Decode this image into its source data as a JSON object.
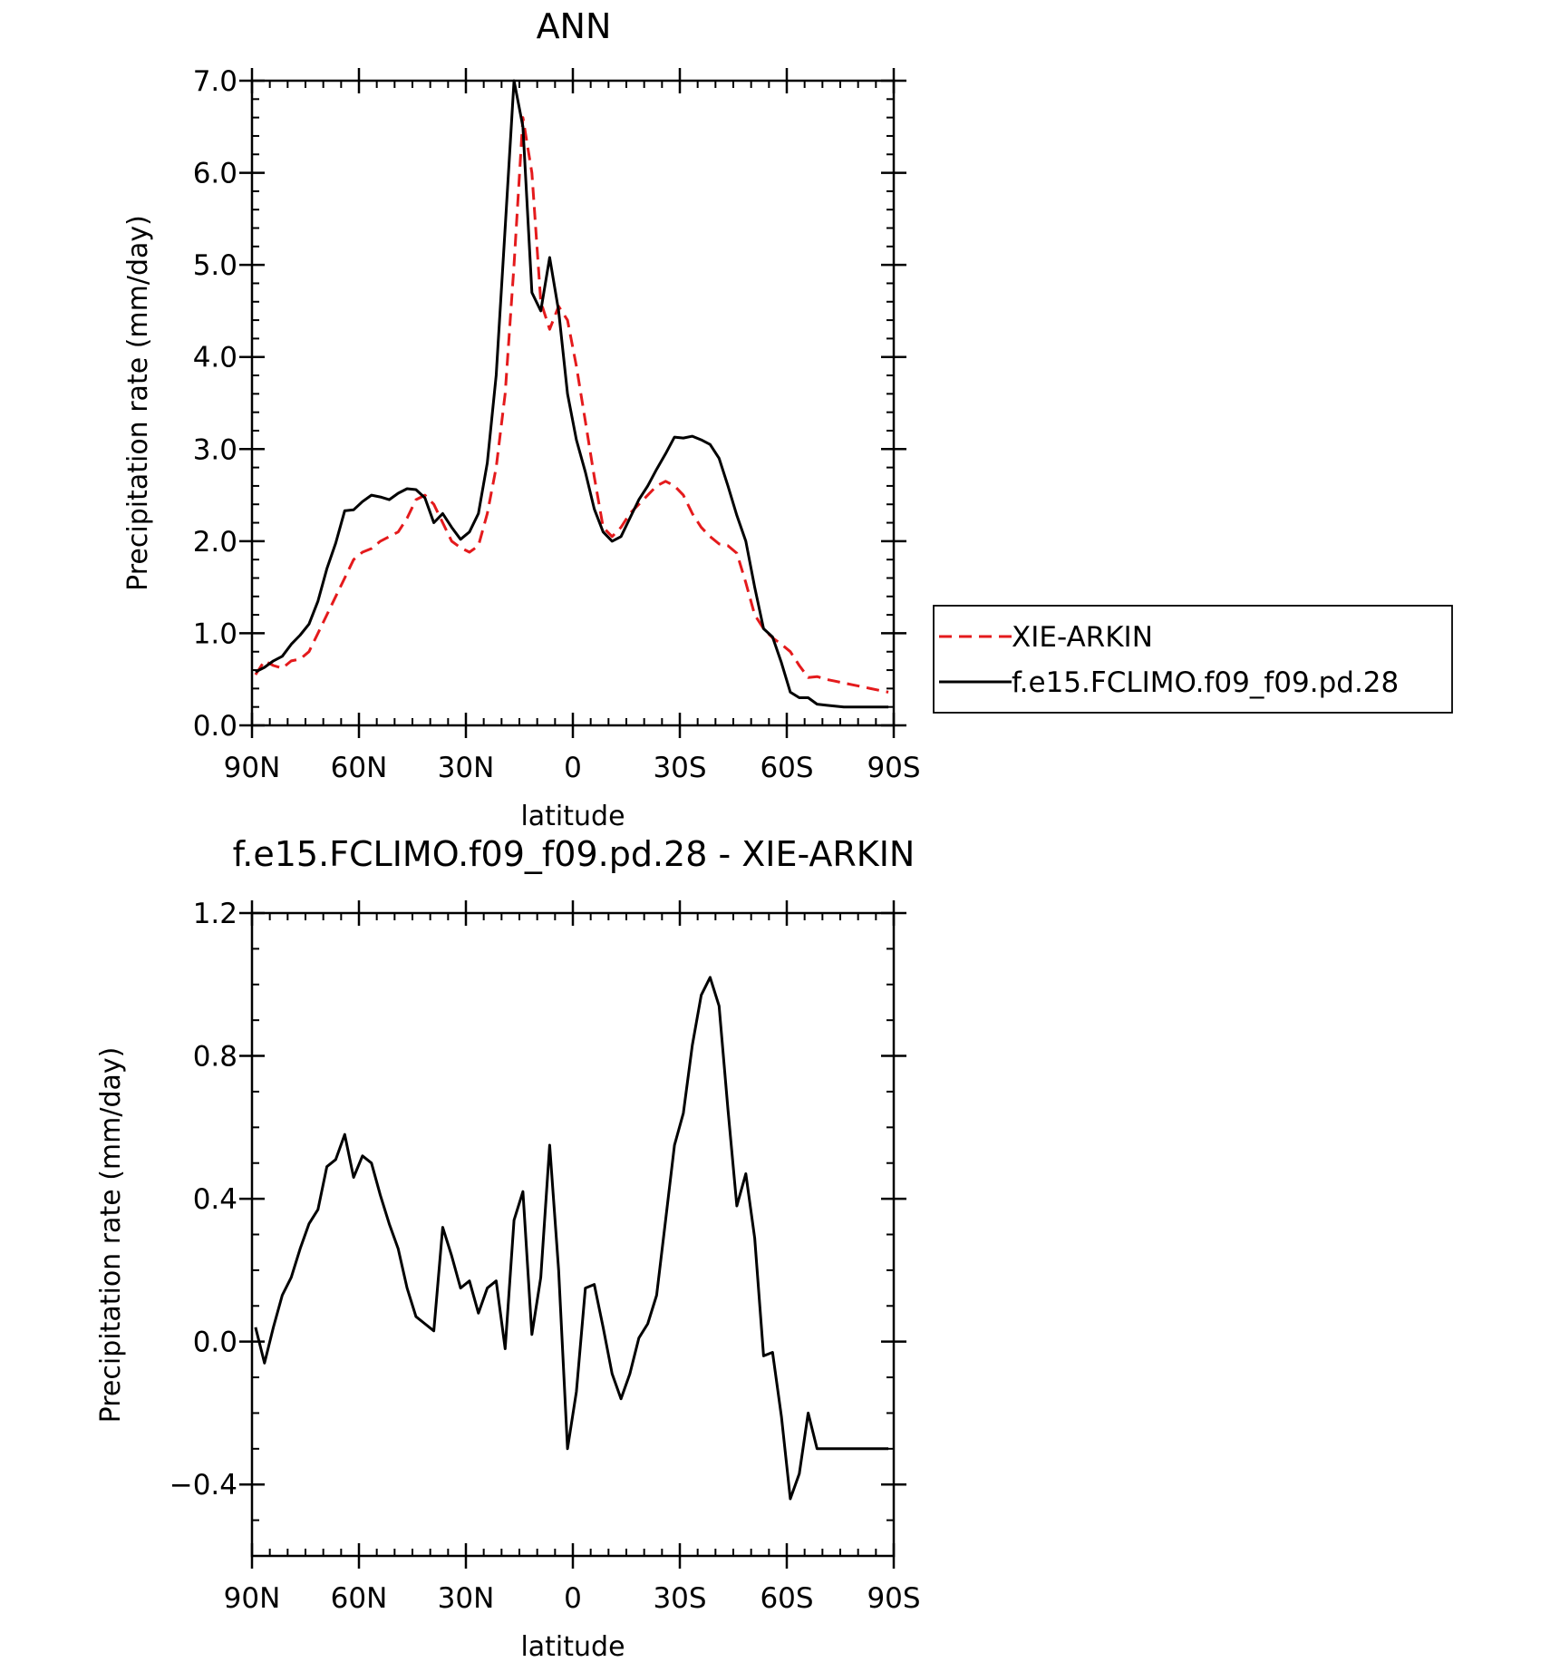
{
  "chart_data": [
    {
      "type": "line",
      "title": "ANN",
      "xlabel": "latitude",
      "ylabel": "Precipitation rate (mm/day)",
      "xlim": [
        90,
        -90
      ],
      "ylim": [
        0,
        7
      ],
      "x_ticks": [
        {
          "value": 90,
          "label": "90N"
        },
        {
          "value": 60,
          "label": "60N"
        },
        {
          "value": 30,
          "label": "30N"
        },
        {
          "value": 0,
          "label": "0"
        },
        {
          "value": -30,
          "label": "30S"
        },
        {
          "value": -60,
          "label": "60S"
        },
        {
          "value": -90,
          "label": "90S"
        }
      ],
      "y_ticks": [
        {
          "value": 0,
          "label": "0.0"
        },
        {
          "value": 1,
          "label": "1.0"
        },
        {
          "value": 2,
          "label": "2.0"
        },
        {
          "value": 3,
          "label": "3.0"
        },
        {
          "value": 4,
          "label": "4.0"
        },
        {
          "value": 5,
          "label": "5.0"
        },
        {
          "value": 6,
          "label": "6.0"
        },
        {
          "value": 7,
          "label": "7.0"
        }
      ],
      "legend": "right",
      "grid": false,
      "series": [
        {
          "name": "XIE-ARKIN",
          "color": "#e41a1c",
          "dash": "dashed",
          "x": [
            89,
            86.5,
            84,
            81.5,
            79,
            76.5,
            74,
            71.5,
            69,
            66.5,
            64,
            61.5,
            59,
            56.5,
            54,
            51.5,
            49,
            46.5,
            44,
            41.5,
            39,
            36.5,
            34,
            31.5,
            29,
            26.5,
            24,
            21.5,
            19,
            16.5,
            14,
            11.5,
            9,
            6.5,
            4,
            1.5,
            -1,
            -3.5,
            -6,
            -8.5,
            -11,
            -13.5,
            -16,
            -18.5,
            -21,
            -23.5,
            -26,
            -28.5,
            -31,
            -33.5,
            -36,
            -38.5,
            -41,
            -43.5,
            -46,
            -48.5,
            -51,
            -53.5,
            -56,
            -58.5,
            -61,
            -63.5,
            -66,
            -68.5,
            -71,
            -73.5,
            -76,
            -78.5,
            -81,
            -83.5,
            -86,
            -88.5
          ],
          "y": [
            0.55,
            0.7,
            0.65,
            0.62,
            0.7,
            0.72,
            0.8,
            1.0,
            1.2,
            1.4,
            1.6,
            1.8,
            1.88,
            1.92,
            2.0,
            2.05,
            2.1,
            2.25,
            2.45,
            2.5,
            2.4,
            2.2,
            2.0,
            1.93,
            1.88,
            1.95,
            2.3,
            2.8,
            3.6,
            5.0,
            6.6,
            6.0,
            4.6,
            4.3,
            4.55,
            4.4,
            3.9,
            3.3,
            2.7,
            2.15,
            2.05,
            2.15,
            2.3,
            2.4,
            2.5,
            2.6,
            2.65,
            2.6,
            2.5,
            2.3,
            2.15,
            2.05,
            1.97,
            1.95,
            1.87,
            1.55,
            1.2,
            1.05,
            0.95,
            0.88,
            0.8,
            0.65,
            0.52,
            0.53,
            0.5,
            0.48,
            0.46,
            0.44,
            0.42,
            0.4,
            0.38,
            0.36
          ]
        },
        {
          "name": "f.e15.FCLIMO.f09_f09.pd.28",
          "color": "#000000",
          "dash": "solid",
          "x": [
            89,
            86.5,
            84,
            81.5,
            79,
            76.5,
            74,
            71.5,
            69,
            66.5,
            64,
            61.5,
            59,
            56.5,
            54,
            51.5,
            49,
            46.5,
            44,
            41.5,
            39,
            36.5,
            34,
            31.5,
            29,
            26.5,
            24,
            21.5,
            19,
            16.5,
            14,
            11.5,
            9,
            6.5,
            4,
            1.5,
            -1,
            -3.5,
            -6,
            -8.5,
            -11,
            -13.5,
            -16,
            -18.5,
            -21,
            -23.5,
            -26,
            -28.5,
            -31,
            -33.5,
            -36,
            -38.5,
            -41,
            -43.5,
            -46,
            -48.5,
            -51,
            -53.5,
            -56,
            -58.5,
            -61,
            -63.5,
            -66,
            -68.5,
            -71,
            -73.5,
            -76,
            -78.5,
            -81,
            -83.5,
            -86,
            -88.5
          ],
          "y": [
            0.58,
            0.63,
            0.7,
            0.75,
            0.88,
            0.98,
            1.1,
            1.35,
            1.7,
            1.98,
            2.33,
            2.34,
            2.43,
            2.5,
            2.48,
            2.45,
            2.52,
            2.57,
            2.56,
            2.47,
            2.2,
            2.3,
            2.15,
            2.02,
            2.1,
            2.3,
            2.85,
            3.8,
            5.4,
            7.0,
            6.5,
            4.7,
            4.5,
            5.08,
            4.5,
            3.6,
            3.1,
            2.75,
            2.35,
            2.1,
            2.0,
            2.05,
            2.25,
            2.45,
            2.6,
            2.78,
            2.95,
            3.13,
            3.12,
            3.14,
            3.1,
            3.05,
            2.9,
            2.6,
            2.28,
            2.0,
            1.5,
            1.05,
            0.96,
            0.68,
            0.36,
            0.3,
            0.3,
            0.23,
            0.22,
            0.21,
            0.2,
            0.2,
            0.2,
            0.2,
            0.2,
            0.2
          ]
        }
      ]
    },
    {
      "type": "line",
      "title": "f.e15.FCLIMO.f09_f09.pd.28 - XIE-ARKIN",
      "xlabel": "latitude",
      "ylabel": "Precipitation rate (mm/day)",
      "xlim": [
        90,
        -90
      ],
      "ylim": [
        -0.6,
        1.2
      ],
      "x_ticks": [
        {
          "value": 90,
          "label": "90N"
        },
        {
          "value": 60,
          "label": "60N"
        },
        {
          "value": 30,
          "label": "30N"
        },
        {
          "value": 0,
          "label": "0"
        },
        {
          "value": -30,
          "label": "30S"
        },
        {
          "value": -60,
          "label": "60S"
        },
        {
          "value": -90,
          "label": "90S"
        }
      ],
      "y_ticks": [
        {
          "value": -0.4,
          "label": "-0.4"
        },
        {
          "value": 0,
          "label": "0.0"
        },
        {
          "value": 0.4,
          "label": "0.4"
        },
        {
          "value": 0.8,
          "label": "0.8"
        },
        {
          "value": 1.2,
          "label": "1.2"
        }
      ],
      "grid": false,
      "series": [
        {
          "color": "#000000",
          "dash": "solid",
          "x": [
            89,
            86.5,
            84,
            81.5,
            79,
            76.5,
            74,
            71.5,
            69,
            66.5,
            64,
            61.5,
            59,
            56.5,
            54,
            51.5,
            49,
            46.5,
            44,
            41.5,
            39,
            36.5,
            34,
            31.5,
            29,
            26.5,
            24,
            21.5,
            19,
            16.5,
            14,
            11.5,
            9,
            6.5,
            4,
            1.5,
            -1,
            -3.5,
            -6,
            -8.5,
            -11,
            -13.5,
            -16,
            -18.5,
            -21,
            -23.5,
            -26,
            -28.5,
            -31,
            -33.5,
            -36,
            -38.5,
            -41,
            -43.5,
            -46,
            -48.5,
            -51,
            -53.5,
            -56,
            -58.5,
            -61,
            -63.5,
            -66,
            -68.5,
            -71,
            -73.5,
            -76,
            -78.5,
            -81,
            -83.5,
            -86,
            -88.5
          ],
          "y": [
            0.04,
            -0.06,
            0.04,
            0.13,
            0.18,
            0.26,
            0.33,
            0.37,
            0.49,
            0.51,
            0.58,
            0.46,
            0.52,
            0.5,
            0.41,
            0.33,
            0.26,
            0.15,
            0.07,
            0.05,
            0.03,
            0.32,
            0.24,
            0.15,
            0.17,
            0.08,
            0.15,
            0.17,
            -0.02,
            0.34,
            0.42,
            0.02,
            0.18,
            0.55,
            0.2,
            -0.3,
            -0.14,
            0.15,
            0.16,
            0.04,
            -0.09,
            -0.16,
            -0.09,
            0.01,
            0.05,
            0.13,
            0.34,
            0.55,
            0.64,
            0.83,
            0.97,
            1.02,
            0.94,
            0.65,
            0.38,
            0.47,
            0.29,
            -0.04,
            -0.03,
            -0.21,
            -0.44,
            -0.37,
            -0.2,
            -0.3,
            -0.3,
            -0.3,
            -0.3,
            -0.3,
            -0.3,
            -0.3,
            -0.3,
            -0.3
          ]
        }
      ]
    }
  ]
}
